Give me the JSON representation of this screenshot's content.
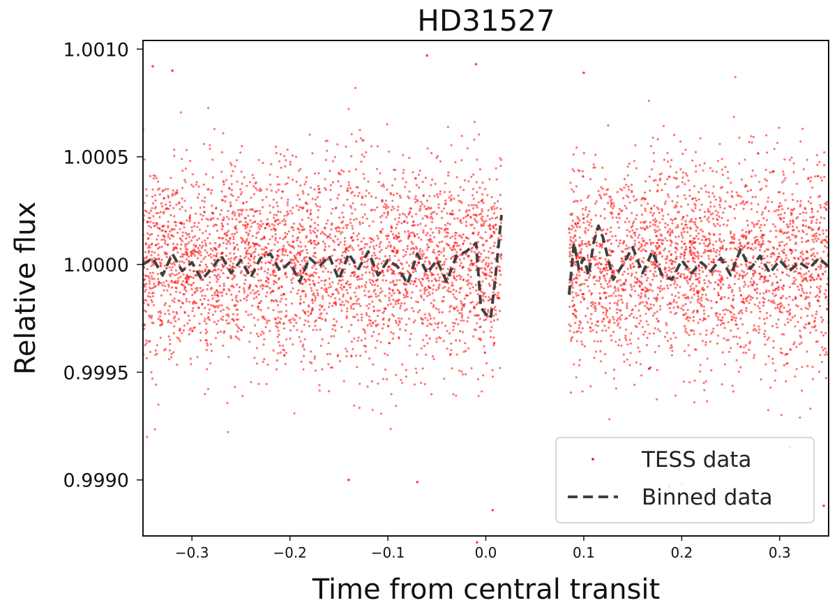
{
  "chart_data": {
    "type": "scatter",
    "title": "HD31527",
    "xlabel": "Time from central transit",
    "ylabel": "Relative flux",
    "xlim": [
      -0.35,
      0.35
    ],
    "ylim": [
      0.99874,
      1.00104
    ],
    "x_ticks": [
      -0.3,
      -0.2,
      -0.1,
      0.0,
      0.1,
      0.2,
      0.3
    ],
    "x_tick_labels": [
      "−0.3",
      "−0.2",
      "−0.1",
      "0.0",
      "0.1",
      "0.2",
      "0.3"
    ],
    "y_ticks": [
      0.999,
      0.9995,
      1.0,
      1.0005,
      1.001
    ],
    "y_tick_labels": [
      "0.9990",
      "0.9995",
      "1.0000",
      "1.0005",
      "1.0010"
    ],
    "grid": false,
    "legend": {
      "placement": "lower-right",
      "entries": [
        "TESS data",
        "Binned data"
      ]
    },
    "series": [
      {
        "name": "TESS data",
        "kind": "scatter",
        "color": "#ff0000",
        "segments": [
          {
            "x_range": [
              -0.35,
              0.016
            ],
            "mean": 1.0,
            "scatter_sigma": 0.00023
          },
          {
            "x_range": [
              0.085,
              0.35
            ],
            "mean": 1.0,
            "scatter_sigma": 0.00023
          }
        ],
        "outliers": [
          {
            "x": -0.34,
            "y": 1.00092
          },
          {
            "x": -0.32,
            "y": 1.0009
          },
          {
            "x": -0.06,
            "y": 1.00097
          },
          {
            "x": -0.01,
            "y": 1.00093
          },
          {
            "x": 0.1,
            "y": 1.00089
          },
          {
            "x": -0.14,
            "y": 0.999
          },
          {
            "x": -0.07,
            "y": 0.99899
          },
          {
            "x": 0.007,
            "y": 0.99886
          },
          {
            "x": -0.009,
            "y": 0.99871
          },
          {
            "x": 0.187,
            "y": 0.99897
          },
          {
            "x": 0.2,
            "y": 0.99898
          },
          {
            "x": 0.31,
            "y": 0.99915
          },
          {
            "x": 0.345,
            "y": 0.99888
          }
        ]
      },
      {
        "name": "Binned data",
        "kind": "line",
        "style": "dashed",
        "color": "#404040",
        "segments": [
          {
            "x": [
              -0.35,
              -0.34,
              -0.33,
              -0.32,
              -0.31,
              -0.3,
              -0.29,
              -0.28,
              -0.27,
              -0.26,
              -0.25,
              -0.24,
              -0.23,
              -0.22,
              -0.21,
              -0.2,
              -0.19,
              -0.18,
              -0.17,
              -0.16,
              -0.15,
              -0.14,
              -0.13,
              -0.12,
              -0.11,
              -0.1,
              -0.09,
              -0.08,
              -0.07,
              -0.06,
              -0.05,
              -0.04,
              -0.03,
              -0.02,
              -0.01,
              -0.005,
              0.0,
              0.005,
              0.01,
              0.016
            ],
            "y": [
              1.0,
              1.00003,
              0.99995,
              1.00005,
              0.99997,
              1.00001,
              0.99993,
              0.99998,
              1.00004,
              0.99996,
              1.00002,
              0.99994,
              1.00003,
              1.00005,
              0.99997,
              1.00001,
              0.99992,
              1.00003,
              0.99999,
              1.00004,
              0.99993,
              1.00005,
              0.99998,
              1.00006,
              0.99995,
              1.00002,
              0.99999,
              0.99991,
              1.00005,
              0.99996,
              1.00002,
              0.99992,
              1.00004,
              1.00006,
              1.0001,
              0.9998,
              0.99977,
              0.99975,
              0.99995,
              1.00023
            ]
          },
          {
            "x": [
              0.085,
              0.09,
              0.095,
              0.1,
              0.105,
              0.11,
              0.115,
              0.12,
              0.13,
              0.14,
              0.15,
              0.16,
              0.17,
              0.18,
              0.19,
              0.2,
              0.21,
              0.22,
              0.23,
              0.24,
              0.25,
              0.26,
              0.27,
              0.28,
              0.29,
              0.3,
              0.31,
              0.32,
              0.33,
              0.34,
              0.35
            ],
            "y": [
              0.99986,
              1.0001,
              0.99998,
              1.00003,
              0.99995,
              1.0001,
              1.00018,
              1.00012,
              0.99993,
              1.0,
              1.00008,
              0.99996,
              1.00006,
              0.99995,
              0.99993,
              1.00002,
              0.99996,
              1.00001,
              0.99997,
              1.00003,
              0.99995,
              1.00007,
              0.99998,
              1.00004,
              0.99996,
              1.00002,
              0.99997,
              1.00001,
              0.99998,
              1.00003,
              0.99999
            ]
          }
        ]
      }
    ]
  }
}
